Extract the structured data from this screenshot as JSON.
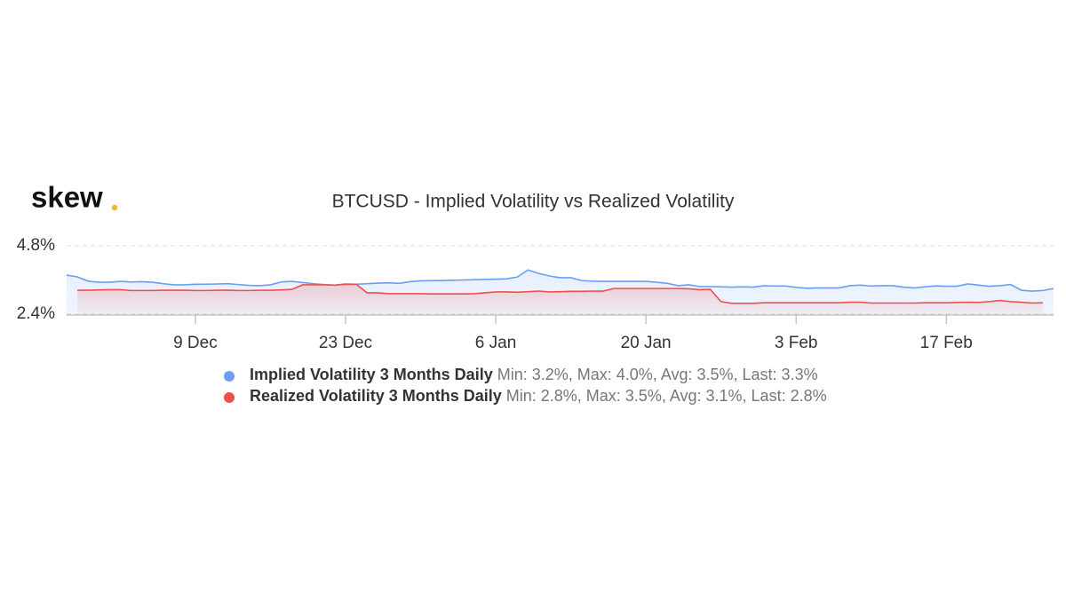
{
  "logo": "skew",
  "chart_data": {
    "type": "line",
    "title": "BTCUSD - Implied Volatility vs Realized Volatility",
    "x": [
      "27 Nov",
      "28 Nov",
      "29 Nov",
      "30 Nov",
      "1 Dec",
      "2 Dec",
      "3 Dec",
      "4 Dec",
      "5 Dec",
      "6 Dec",
      "7 Dec",
      "8 Dec",
      "9 Dec",
      "10 Dec",
      "11 Dec",
      "12 Dec",
      "13 Dec",
      "14 Dec",
      "15 Dec",
      "16 Dec",
      "17 Dec",
      "18 Dec",
      "19 Dec",
      "20 Dec",
      "21 Dec",
      "22 Dec",
      "23 Dec",
      "24 Dec",
      "25 Dec",
      "26 Dec",
      "27 Dec",
      "28 Dec",
      "29 Dec",
      "30 Dec",
      "31 Dec",
      "1 Jan",
      "2 Jan",
      "3 Jan",
      "4 Jan",
      "5 Jan",
      "6 Jan",
      "7 Jan",
      "8 Jan",
      "9 Jan",
      "10 Jan",
      "11 Jan",
      "12 Jan",
      "13 Jan",
      "14 Jan",
      "15 Jan",
      "16 Jan",
      "17 Jan",
      "18 Jan",
      "19 Jan",
      "20 Jan",
      "21 Jan",
      "22 Jan",
      "23 Jan",
      "24 Jan",
      "25 Jan",
      "26 Jan",
      "27 Jan",
      "28 Jan",
      "29 Jan",
      "30 Jan",
      "31 Jan",
      "1 Feb",
      "2 Feb",
      "3 Feb",
      "4 Feb",
      "5 Feb",
      "6 Feb",
      "7 Feb",
      "8 Feb",
      "9 Feb",
      "10 Feb",
      "11 Feb",
      "12 Feb",
      "13 Feb",
      "14 Feb",
      "15 Feb",
      "16 Feb",
      "17 Feb",
      "18 Feb",
      "19 Feb",
      "20 Feb",
      "21 Feb",
      "22 Feb",
      "23 Feb",
      "24 Feb",
      "25 Feb",
      "26 Feb",
      "27 Feb"
    ],
    "xticks": [
      "9 Dec",
      "23 Dec",
      "6 Jan",
      "20 Jan",
      "3 Feb",
      "17 Feb"
    ],
    "ylim": [
      2.4,
      4.8
    ],
    "yticks": [
      {
        "value": 2.4,
        "label": "2.4%"
      },
      {
        "value": 4.8,
        "label": "4.8%"
      }
    ],
    "series": [
      {
        "name": "Implied Volatility 3 Months Daily",
        "stats": "Min: 3.2%, Max: 4.0%, Avg: 3.5%, Last: 3.3%",
        "color": "#6a9ef5",
        "values": [
          3.77,
          3.71,
          3.56,
          3.52,
          3.52,
          3.55,
          3.53,
          3.54,
          3.52,
          3.47,
          3.43,
          3.43,
          3.45,
          3.45,
          3.46,
          3.47,
          3.44,
          3.41,
          3.4,
          3.43,
          3.53,
          3.55,
          3.51,
          3.47,
          3.44,
          3.42,
          3.44,
          3.45,
          3.47,
          3.49,
          3.5,
          3.48,
          3.54,
          3.57,
          3.58,
          3.58,
          3.59,
          3.6,
          3.61,
          3.62,
          3.63,
          3.64,
          3.7,
          3.95,
          3.83,
          3.74,
          3.68,
          3.68,
          3.58,
          3.56,
          3.55,
          3.55,
          3.55,
          3.55,
          3.55,
          3.52,
          3.48,
          3.4,
          3.43,
          3.37,
          3.37,
          3.36,
          3.35,
          3.36,
          3.35,
          3.4,
          3.39,
          3.39,
          3.34,
          3.31,
          3.32,
          3.32,
          3.32,
          3.4,
          3.42,
          3.39,
          3.4,
          3.4,
          3.35,
          3.32,
          3.36,
          3.39,
          3.38,
          3.38,
          3.46,
          3.42,
          3.38,
          3.4,
          3.44,
          3.24,
          3.21,
          3.23,
          3.3
        ]
      },
      {
        "name": "Realized Volatility 3 Months Daily",
        "stats": "Min: 2.8%, Max: 3.5%, Avg: 3.1%, Last: 2.8%",
        "color": "#f04e4e",
        "values": [
          null,
          3.24,
          3.24,
          3.25,
          3.26,
          3.26,
          3.23,
          3.23,
          3.23,
          3.24,
          3.24,
          3.24,
          3.23,
          3.23,
          3.24,
          3.24,
          3.23,
          3.23,
          3.24,
          3.24,
          3.25,
          3.27,
          3.43,
          3.43,
          3.43,
          3.42,
          3.46,
          3.45,
          3.15,
          3.15,
          3.12,
          3.12,
          3.12,
          3.12,
          3.11,
          3.11,
          3.11,
          3.11,
          3.12,
          3.15,
          3.18,
          3.18,
          3.17,
          3.19,
          3.21,
          3.18,
          3.19,
          3.2,
          3.2,
          3.21,
          3.21,
          3.3,
          3.3,
          3.3,
          3.3,
          3.3,
          3.3,
          3.3,
          3.29,
          3.26,
          3.27,
          2.84,
          2.78,
          2.78,
          2.78,
          2.8,
          2.8,
          2.8,
          2.8,
          2.8,
          2.8,
          2.8,
          2.8,
          2.82,
          2.82,
          2.79,
          2.79,
          2.79,
          2.79,
          2.79,
          2.8,
          2.8,
          2.8,
          2.81,
          2.82,
          2.81,
          2.84,
          2.88,
          2.84,
          2.82,
          2.79,
          2.8,
          null
        ]
      }
    ],
    "grid": true
  }
}
